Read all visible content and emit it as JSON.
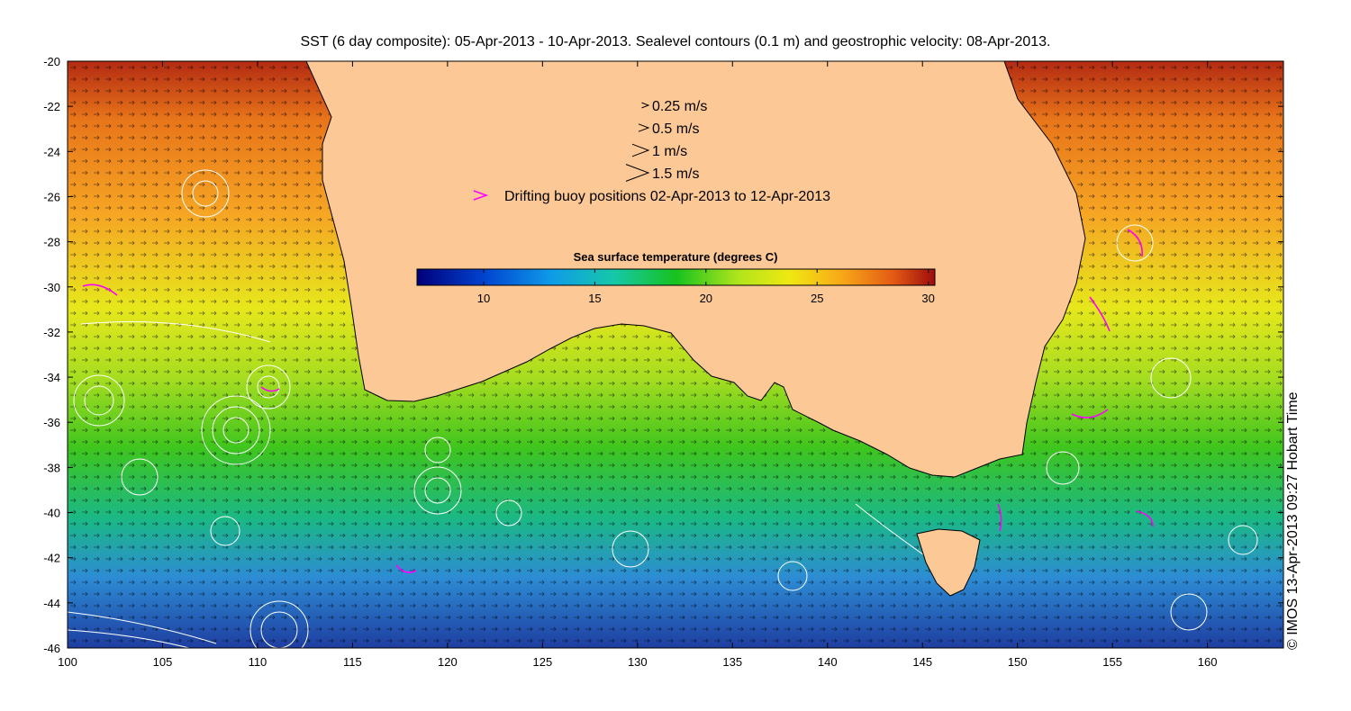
{
  "title": "SST (6 day composite): 05-Apr-2013 - 10-Apr-2013. Sealevel contours (0.1 m) and geostrophic velocity: 08-Apr-2013.",
  "credit": "© IMOS 13-Apr-2013 09:27 Hobart Time",
  "x_axis": {
    "min": 100,
    "max": 164,
    "ticks": [
      100,
      105,
      110,
      115,
      120,
      125,
      130,
      135,
      140,
      145,
      150,
      155,
      160
    ]
  },
  "y_axis": {
    "min": -46,
    "max": -20,
    "ticks": [
      -20,
      -22,
      -24,
      -26,
      -28,
      -30,
      -32,
      -34,
      -36,
      -38,
      -40,
      -42,
      -44,
      -46
    ]
  },
  "velocity_legend": [
    {
      "label": "0.25 m/s",
      "speed": 0.25
    },
    {
      "label": "0.5 m/s",
      "speed": 0.5
    },
    {
      "label": "1 m/s",
      "speed": 1
    },
    {
      "label": "1.5 m/s",
      "speed": 1.5
    }
  ],
  "buoy_legend": {
    "label": "Drifting buoy positions 02-Apr-2013 to 12-Apr-2013",
    "color": "#ff00ff"
  },
  "colorbar": {
    "title": "Sea surface temperature (degrees C)",
    "min": 7,
    "max": 30.3,
    "ticks": [
      10,
      15,
      20,
      25,
      30
    ]
  },
  "colors": {
    "land": "#fcc896",
    "coastline": "#000000",
    "contour": "#ffffff",
    "buoy": "#ff00ff"
  }
}
